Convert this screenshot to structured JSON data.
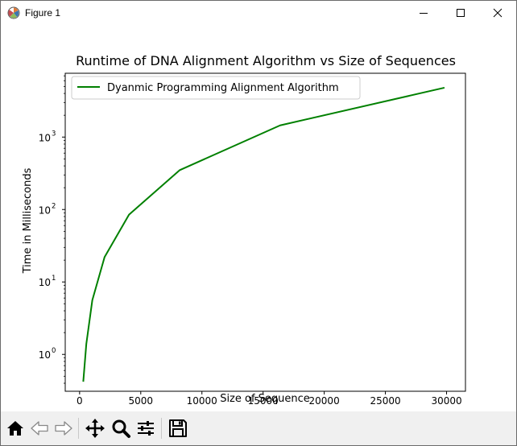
{
  "window": {
    "title": "Figure 1"
  },
  "toolbar": {
    "buttons": [
      {
        "name": "home-icon",
        "label": "Home"
      },
      {
        "name": "back-icon",
        "label": "Back"
      },
      {
        "name": "forward-icon",
        "label": "Forward"
      },
      {
        "name": "pan-icon",
        "label": "Pan"
      },
      {
        "name": "zoom-icon",
        "label": "Zoom"
      },
      {
        "name": "subplots-icon",
        "label": "Configure subplots"
      },
      {
        "name": "save-icon",
        "label": "Save"
      }
    ]
  },
  "colors": {
    "line": "#008000",
    "axes": "#000000",
    "toolbar_bg": "#f0f0f0"
  },
  "chart_data": {
    "type": "line",
    "title": "Runtime of DNA Alignment Algorithm vs Size of Sequences",
    "xlabel": "Size of Sequence",
    "ylabel": "Time in Milliseconds",
    "yscale": "log",
    "xlim": [
      -1175,
      31545
    ],
    "ylim": [
      0.31,
      7600
    ],
    "xticks": [
      0,
      5000,
      10000,
      15000,
      20000,
      25000,
      30000
    ],
    "xtick_labels": [
      "0",
      "5000",
      "10000",
      "15000",
      "20000",
      "25000",
      "30000"
    ],
    "yticks": [
      1,
      10,
      100,
      1000
    ],
    "ytick_labels": [
      "10",
      "10",
      "10",
      "10"
    ],
    "ytick_exponents": [
      "0",
      "1",
      "2",
      "3"
    ],
    "legend": {
      "position": "top-left",
      "entries": [
        "Dyanmic Programming Alignment Algorithm"
      ]
    },
    "series": [
      {
        "name": "Dyanmic Programming Alignment Algorithm",
        "color": "#008000",
        "x": [
          300,
          550,
          1040,
          2040,
          4040,
          8190,
          16390,
          29830
        ],
        "y": [
          0.42,
          1.4,
          5.6,
          22,
          85,
          350,
          1450,
          4800
        ]
      }
    ]
  }
}
